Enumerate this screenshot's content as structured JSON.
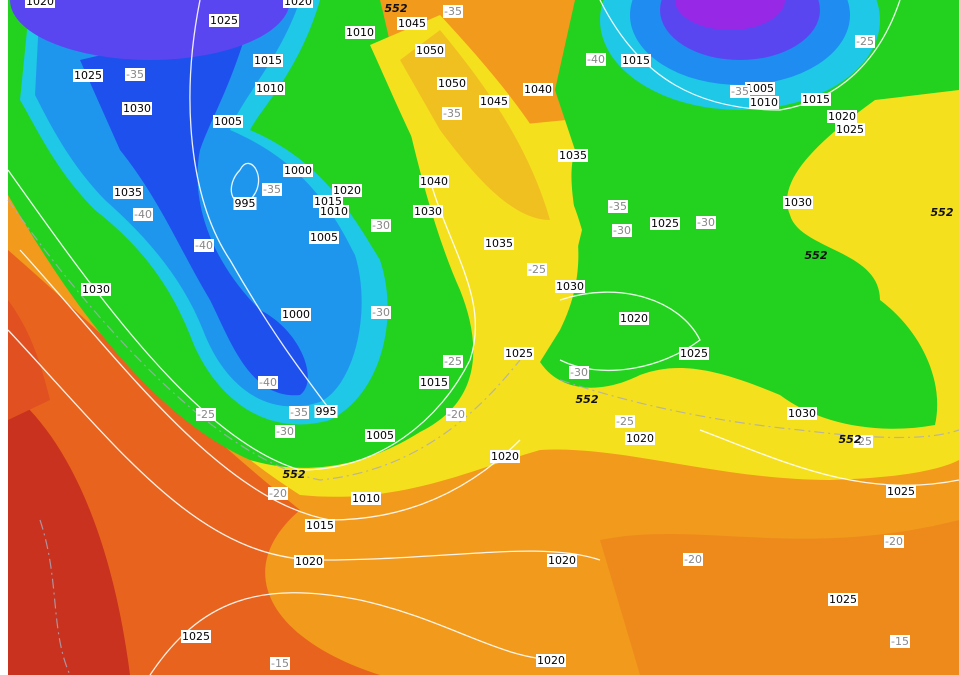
{
  "pressure_labels": [
    1020,
    1025,
    1020,
    1045,
    1010,
    1015,
    1050,
    1025,
    1010,
    1050,
    1045,
    1040,
    1015,
    1005,
    1010,
    1015,
    1030,
    1005,
    1020,
    1025,
    1035,
    1000,
    1040,
    1035,
    1020,
    1015,
    1010,
    995,
    1030,
    1030,
    1025,
    1005,
    1035,
    1030,
    1030,
    1000,
    1020,
    1025,
    1025,
    1015,
    995,
    1030,
    1005,
    1020,
    1020,
    1010,
    1025,
    1015,
    1020,
    1020,
    1025,
    1025,
    1020
  ],
  "temperature_labels": [
    -35,
    -35,
    -40,
    -35,
    -25,
    -35,
    -35,
    -40,
    -35,
    -30,
    -30,
    -30,
    -40,
    -25,
    -30,
    -25,
    -30,
    -40,
    -35,
    -25,
    -30,
    -25,
    -20,
    -25,
    -20,
    -20,
    -20,
    -15,
    -15
  ],
  "thickness_labels": [
    552,
    552,
    552,
    552,
    552,
    552
  ]
}
